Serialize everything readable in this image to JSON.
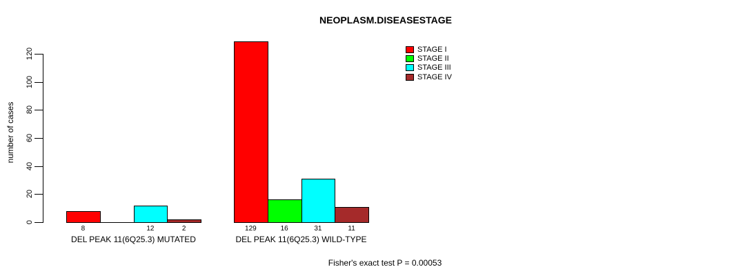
{
  "page": {
    "background": "#ffffff"
  },
  "chart_data": {
    "type": "bar",
    "title": "NEOPLASM.DISEASESTAGE",
    "ylabel": "number of cases",
    "xlabel": "",
    "ylim": [
      0,
      120
    ],
    "yticks": [
      0,
      20,
      40,
      60,
      80,
      100,
      120
    ],
    "grid": false,
    "legend": {
      "position": "top-right",
      "entries": [
        "STAGE I",
        "STAGE II",
        "STAGE III",
        "STAGE IV"
      ]
    },
    "categories": [
      "STAGE I",
      "STAGE II",
      "STAGE III",
      "STAGE IV"
    ],
    "colors": [
      "#ff0000",
      "#00ff00",
      "#00ffff",
      "#a52a2a"
    ],
    "bar_border_color": "#000000",
    "groups": [
      {
        "label": "DEL PEAK 11(6Q25.3) MUTATED",
        "values": [
          8,
          0,
          12,
          2
        ],
        "value_labels": [
          "8",
          "",
          "12",
          "2"
        ]
      },
      {
        "label": "DEL PEAK 11(6Q25.3) WILD-TYPE",
        "values": [
          129,
          16,
          31,
          11
        ],
        "value_labels": [
          "129",
          "16",
          "31",
          "11"
        ]
      }
    ],
    "annotation": "Fisher's exact test P = 0.00053"
  }
}
